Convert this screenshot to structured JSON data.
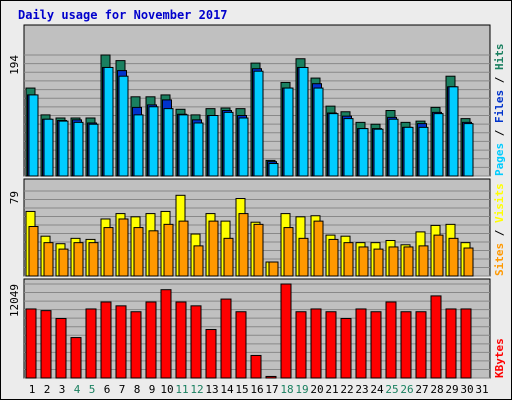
{
  "chart_data": {
    "type": "bar",
    "title": "Daily usage for November 2017",
    "categories": [
      "1",
      "2",
      "3",
      "4",
      "5",
      "6",
      "7",
      "8",
      "9",
      "10",
      "11",
      "12",
      "13",
      "14",
      "15",
      "16",
      "17",
      "18",
      "19",
      "20",
      "21",
      "22",
      "23",
      "24",
      "25",
      "26",
      "27",
      "28",
      "29",
      "30",
      "31"
    ],
    "weekend_days": [
      4,
      5,
      11,
      12,
      18,
      19,
      25,
      26
    ],
    "panels": [
      {
        "id": "hits-files-pages",
        "ymax_label": "194",
        "ymax": 194,
        "legend": [
          {
            "label": "Pages",
            "color": "#00ccff"
          },
          {
            "label": "Files",
            "color": "#0033cc"
          },
          {
            "label": "Hits",
            "color": "#1a8060"
          }
        ],
        "series": [
          {
            "name": "Hits",
            "color": "#1a8060",
            "values": [
              141,
              98,
              93,
              93,
              93,
              194,
              185,
              127,
              127,
              130,
              107,
              98,
              108,
              109,
              108,
              181,
              25,
              150,
              188,
              157,
              112,
              103,
              86,
              83,
              105,
              86,
              88,
              110,
              160,
              92,
              null
            ]
          },
          {
            "name": "Files",
            "color": "#0033cc",
            "values": [
              130,
              91,
              89,
              90,
              85,
              174,
              169,
              110,
              114,
              122,
              99,
              90,
              97,
              105,
              97,
              172,
              23,
              141,
              174,
              148,
              101,
              96,
              76,
              76,
              94,
              78,
              84,
              102,
              143,
              86,
              null
            ]
          },
          {
            "name": "Pages",
            "color": "#00ccff",
            "values": [
              130,
              91,
              88,
              86,
              83,
              174,
              160,
              98,
              111,
              108,
              98,
              85,
              97,
              102,
              93,
              168,
              20,
              141,
              174,
              141,
              100,
              92,
              76,
              75,
              91,
              78,
              78,
              100,
              143,
              84,
              null
            ]
          }
        ]
      },
      {
        "id": "visits-sites",
        "ymax_label": "79",
        "ymax": 79,
        "legend": [
          {
            "label": "Sites",
            "color": "#ff9900"
          },
          {
            "label": "Visits",
            "color": "#ffff00"
          }
        ],
        "series": [
          {
            "name": "Visits",
            "color": "#ffff00",
            "values": [
              60,
              37,
              30,
              35,
              34,
              53,
              58,
              55,
              58,
              60,
              75,
              39,
              58,
              51,
              72,
              50,
              13,
              58,
              55,
              56,
              38,
              37,
              31,
              31,
              33,
              29,
              41,
              47,
              48,
              31,
              null
            ]
          },
          {
            "name": "Sites",
            "color": "#ff9900",
            "values": [
              46,
              31,
              25,
              31,
              31,
              45,
              53,
              45,
              42,
              48,
              51,
              28,
              51,
              35,
              58,
              48,
              13,
              45,
              35,
              51,
              34,
              31,
              27,
              25,
              27,
              27,
              28,
              38,
              35,
              26,
              null
            ]
          }
        ]
      },
      {
        "id": "kbytes",
        "ymax_label": "12049",
        "ymax": 12049,
        "legend": [
          {
            "label": "KBytes",
            "color": "#ff0000"
          }
        ],
        "series": [
          {
            "name": "KBytes",
            "color": "#ff0000",
            "values": [
              8850,
              8636,
              7630,
              5183,
              8850,
              9743,
              9251,
              8494,
              9743,
              11320,
              9743,
              9251,
              6214,
              10118,
              8494,
              2890,
              200,
              12049,
              8494,
              8850,
              8494,
              7630,
              8850,
              8494,
              9743,
              8494,
              8494,
              10524,
              8850,
              8850,
              null
            ]
          }
        ]
      }
    ]
  }
}
